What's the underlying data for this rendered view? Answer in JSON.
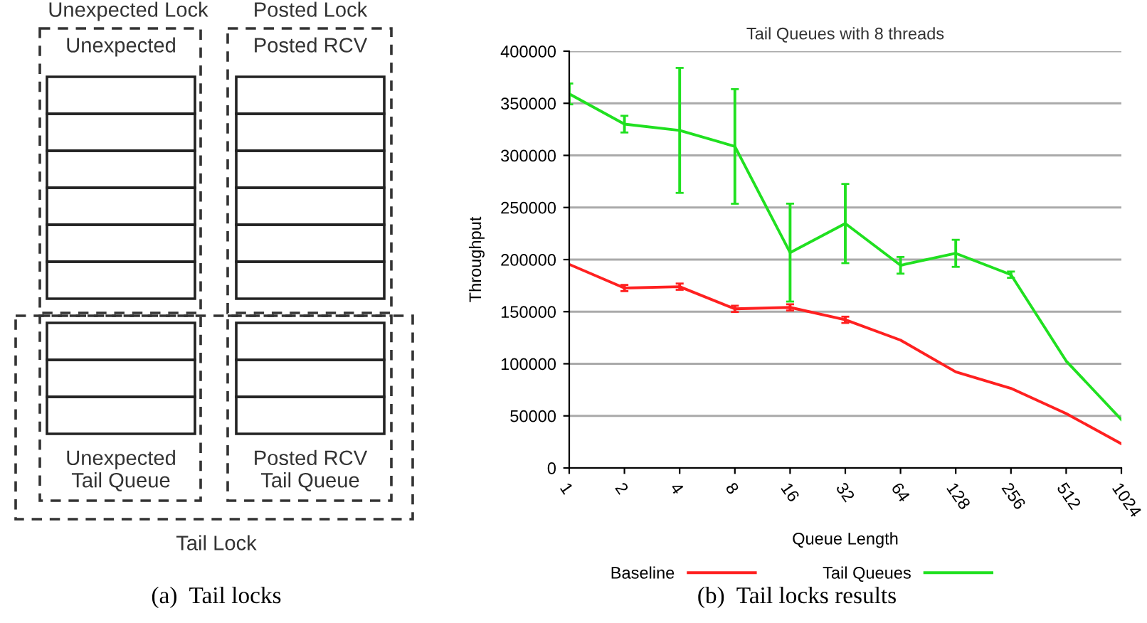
{
  "chart_data": [
    {
      "type": "other",
      "annotations": [
        "Unexpected Lock",
        "Posted Lock",
        "Unexpected",
        "Posted RCV",
        "Unexpected\nTail Queue",
        "Posted RCV\nTail Queue",
        "Tail Lock",
        "(a)  Tail locks"
      ]
    },
    {
      "type": "line",
      "title": "Tail Queues with 8 threads",
      "xlabel": "Queue Length",
      "ylabel": "Throughput",
      "categories": [
        "1",
        "2",
        "4",
        "8",
        "16",
        "32",
        "64",
        "128",
        "256",
        "512",
        "1024"
      ],
      "series": [
        {
          "name": "Baseline",
          "color": "#ff2020",
          "values": [
            195400,
            172700,
            174000,
            152700,
            154100,
            142200,
            122700,
            92200,
            76400,
            52200,
            23200
          ],
          "errors": [
            null,
            3000,
            3000,
            3000,
            3000,
            3000,
            null,
            null,
            null,
            null,
            null
          ]
        },
        {
          "name": "Tail Queues",
          "color": "#20e020",
          "values": [
            359000,
            330000,
            324000,
            308600,
            206700,
            234600,
            194500,
            206000,
            185500,
            102700,
            46400
          ],
          "errors": [
            10000,
            8000,
            60000,
            55000,
            47000,
            38000,
            8000,
            13000,
            3000,
            null,
            null
          ]
        }
      ],
      "ylim": [
        0,
        400000
      ],
      "yticks": [
        0,
        50000,
        100000,
        150000,
        200000,
        250000,
        300000,
        350000,
        400000
      ],
      "grid": "y",
      "legend": "bottom",
      "marker": "none",
      "line_style": "solid",
      "annotations": [
        "(b)  Tail locks results"
      ]
    }
  ]
}
